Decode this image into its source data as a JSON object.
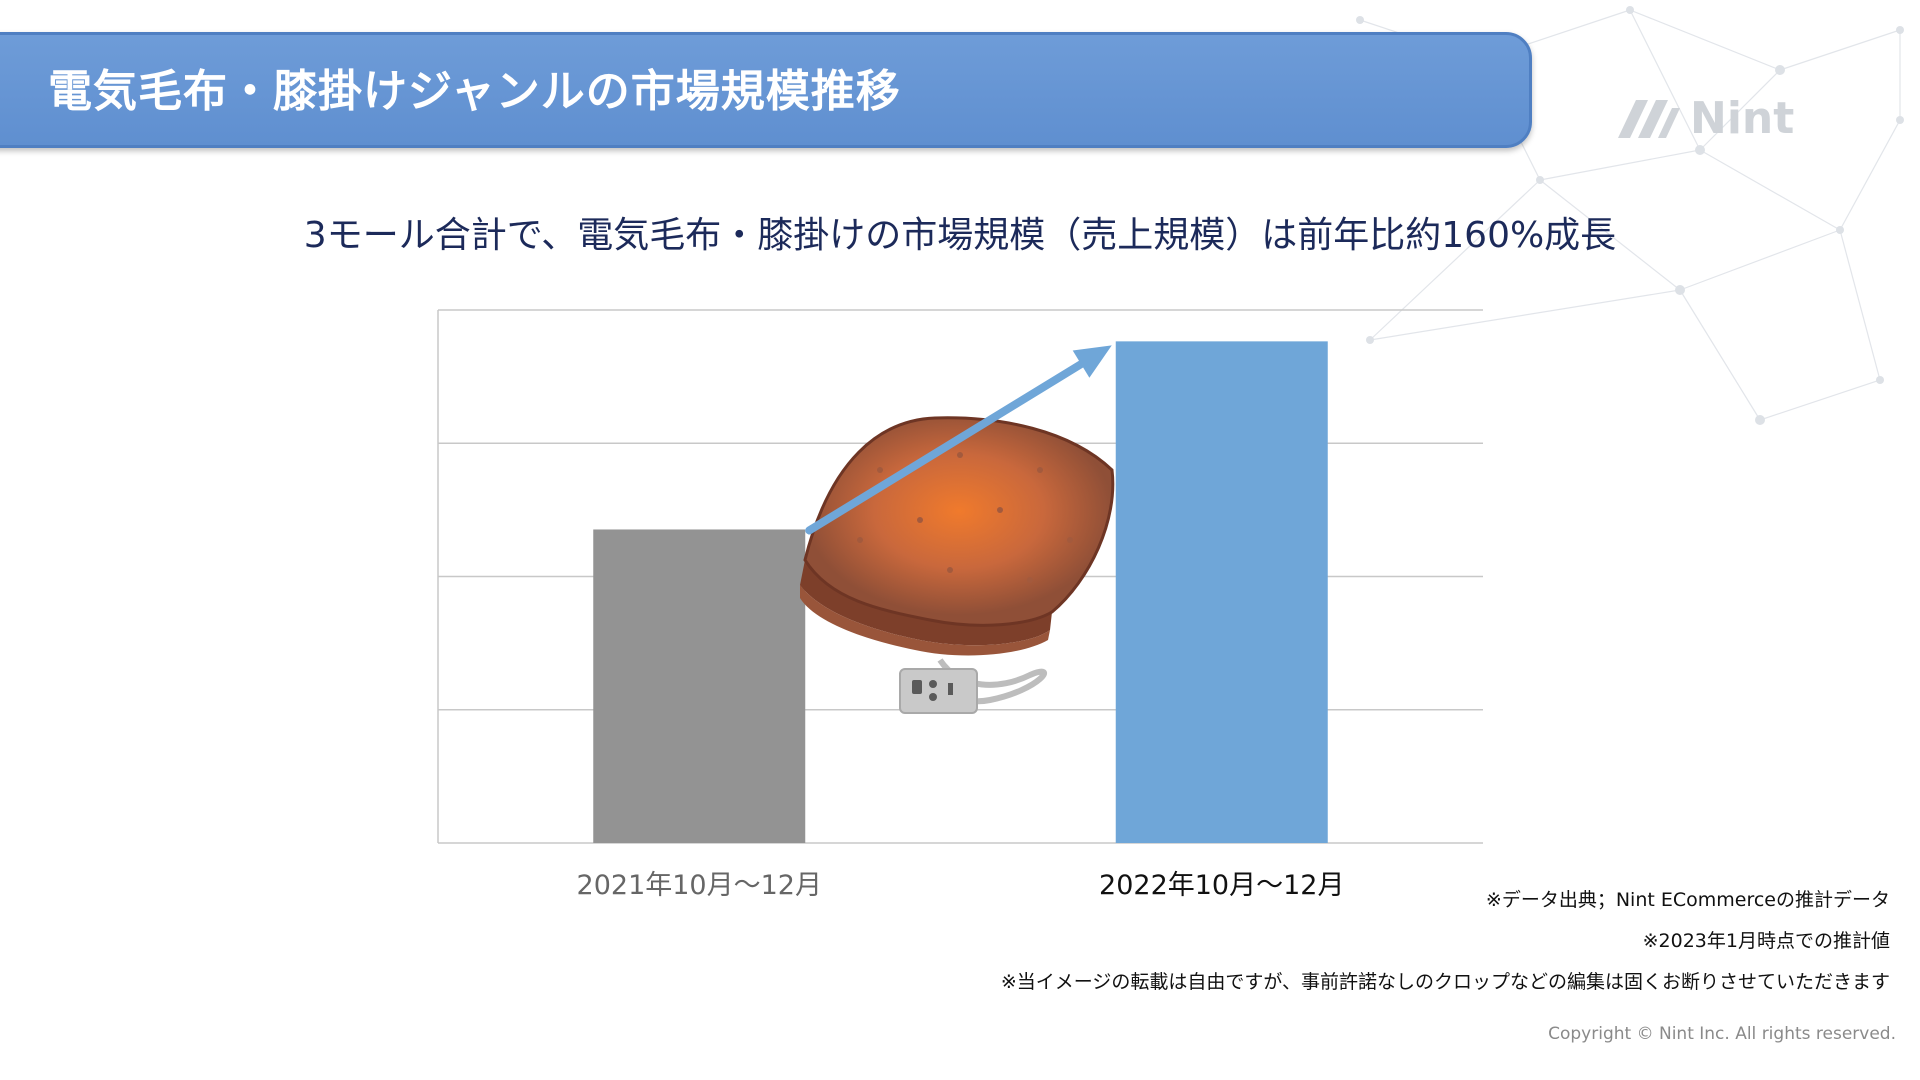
{
  "header": {
    "title": "電気毛布・膝掛けジャンルの市場規模推移"
  },
  "logo": {
    "text": "Nint",
    "color": "#cfd3d8"
  },
  "headline": "3モール合計で、電気毛布・膝掛けの市場規模（売上規模）は前年比約160%成長",
  "chart_data": {
    "type": "bar",
    "categories": [
      "2021年10月〜12月",
      "2022年10月〜12月"
    ],
    "values": [
      100,
      160
    ],
    "bar_colors": [
      "#939393",
      "#6fa6d8"
    ],
    "category_label_colors": [
      "#666666",
      "#111111"
    ],
    "ylim": [
      0,
      170
    ],
    "grid": true,
    "grid_lines": 4,
    "yticks_labeled": false,
    "legend": "none",
    "annotation": "upward-trend-arrow",
    "arrow_color": "#6fa6d8",
    "illustration": "electric-blanket"
  },
  "notes": [
    "※データ出典；Nint ECommerceの推計データ",
    "※2023年1月時点での推計値",
    "※当イメージの転載は自由ですが、事前許諾なしのクロップなどの編集は固くお断りさせていただきます"
  ],
  "copyright": "Copyright © Nint Inc. All rights reserved."
}
